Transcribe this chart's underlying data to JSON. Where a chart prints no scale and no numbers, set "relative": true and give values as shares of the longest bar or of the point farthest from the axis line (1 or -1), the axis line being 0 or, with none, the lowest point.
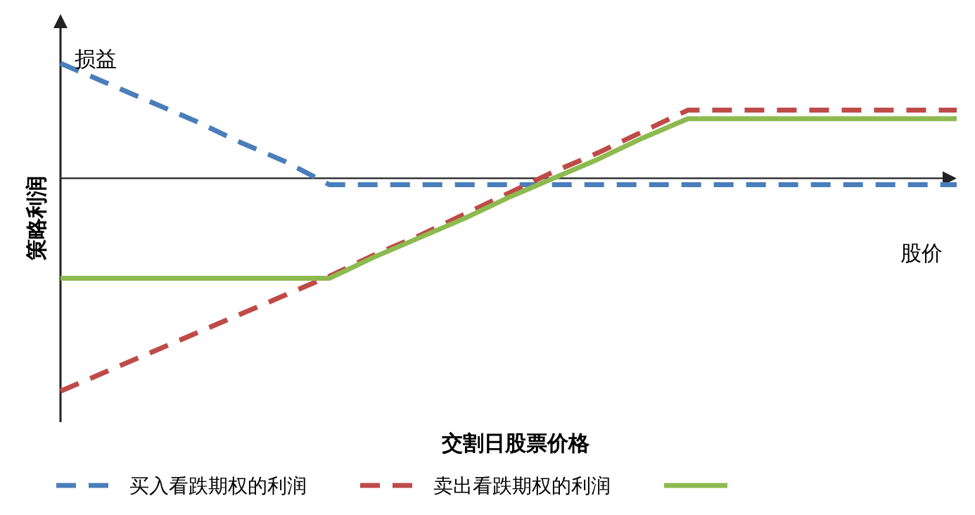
{
  "chart_data": {
    "type": "line",
    "relative": true,
    "xlabel": "交割日股票价格",
    "ylabel": "策略利润",
    "annotations": [
      "损益",
      "股价"
    ],
    "legend": "bottom",
    "categories": [
      null,
      null,
      null,
      null,
      null,
      null,
      null,
      null,
      null,
      null,
      null,
      null,
      null,
      null,
      null,
      null,
      null,
      null,
      null,
      null,
      null
    ],
    "series": [
      {
        "name": "买入看跌期权的利润",
        "color": "#4a7ebb",
        "line_style": "dashed",
        "values": [
          0.54,
          0.45,
          0.36,
          0.27,
          0.17,
          0.08,
          -0.03,
          -0.03,
          -0.03,
          -0.03,
          -0.03,
          -0.03,
          -0.03,
          -0.03,
          -0.03,
          -0.03,
          -0.03,
          -0.03,
          -0.03,
          -0.03,
          -0.03
        ]
      },
      {
        "name": "卖出看跌期权的利润",
        "color": "#be4b48",
        "line_style": "dashed",
        "values": [
          -1,
          -0.91,
          -0.82,
          -0.73,
          -0.64,
          -0.55,
          -0.46,
          -0.36,
          -0.27,
          -0.17,
          -0.07,
          0.03,
          0.12,
          0.22,
          0.32,
          0.32,
          0.32,
          0.32,
          0.32,
          0.32,
          0.32
        ]
      },
      {
        "color": "#8cba4f",
        "line_style": "solid",
        "values": [
          -0.47,
          -0.47,
          -0.47,
          -0.47,
          -0.47,
          -0.47,
          -0.47,
          -0.37,
          -0.28,
          -0.19,
          -0.09,
          0.0,
          0.09,
          0.19,
          0.28,
          0.28,
          0.28,
          0.28,
          0.28,
          0.28,
          0.28
        ]
      }
    ]
  }
}
